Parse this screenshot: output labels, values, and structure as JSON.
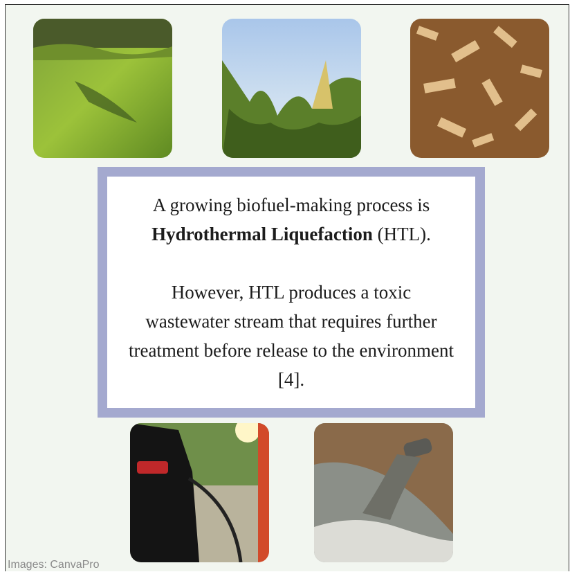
{
  "paragraph_1": {
    "intro": "A growing biofuel-making process is",
    "bold": "Hydrothermal Liquefaction",
    "outro": "(HTL)."
  },
  "paragraph_2": "However, HTL produces a toxic wastewater stream that requires further treatment before release to the environment [4].",
  "caption": "Images: CanvaPro"
}
